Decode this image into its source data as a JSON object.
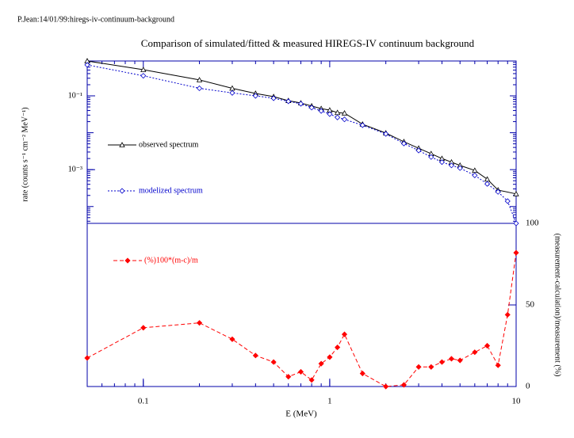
{
  "header": "P.Jean:14/01/99:hiregs-iv-continuum-background",
  "chart_data": {
    "type": "line",
    "title": "Comparison of simulated/fitted & measured HIREGS-IV continuum background",
    "xlabel": "E (MeV)",
    "ylabel": "rate (counts s⁻¹ cm⁻² MeV⁻¹)",
    "y2label": "(measurement-calculation)/measurement (%)",
    "xscale": "log",
    "yscale": "log",
    "xlim": [
      0.05,
      10
    ],
    "xticks": [
      0.1,
      1,
      10
    ],
    "ylim": [
      3.5e-05,
      0.88
    ],
    "yticks": [
      {
        "value": 0.1,
        "label": "10⁻¹"
      },
      {
        "value": 0.001,
        "label": "10⁻³"
      }
    ],
    "y2lim": [
      0,
      100
    ],
    "y2ticks": [
      0,
      50,
      100
    ],
    "series": [
      {
        "name": "observed spectrum",
        "color": "#000000",
        "dash": "solid",
        "marker": "triangle",
        "x": [
          0.05,
          0.1,
          0.2,
          0.3,
          0.4,
          0.5,
          0.6,
          0.7,
          0.8,
          0.9,
          1,
          1.1,
          1.2,
          1.5,
          2,
          2.5,
          3,
          3.5,
          4,
          4.5,
          5,
          6,
          7,
          8,
          10
        ],
        "values": [
          0.88,
          0.51,
          0.27,
          0.16,
          0.116,
          0.095,
          0.074,
          0.064,
          0.053,
          0.045,
          0.041,
          0.035,
          0.034,
          0.017,
          0.0098,
          0.0057,
          0.0038,
          0.0027,
          0.002,
          0.0016,
          0.0013,
          0.00095,
          0.00055,
          0.00028,
          0.00022
        ]
      },
      {
        "name": "modelized spectrum",
        "color": "#0000cc",
        "dash": "dotted",
        "marker": "diamond",
        "x": [
          0.05,
          0.1,
          0.2,
          0.3,
          0.4,
          0.5,
          0.6,
          0.7,
          0.8,
          0.9,
          1,
          1.1,
          1.2,
          1.5,
          2,
          2.5,
          3,
          3.5,
          4,
          4.5,
          5,
          6,
          7,
          8,
          9,
          10
        ],
        "values": [
          0.69,
          0.35,
          0.16,
          0.12,
          0.1,
          0.086,
          0.071,
          0.061,
          0.048,
          0.039,
          0.032,
          0.026,
          0.023,
          0.016,
          0.0093,
          0.0051,
          0.0033,
          0.0022,
          0.0016,
          0.0013,
          0.0011,
          0.0007,
          0.00041,
          0.00025,
          0.00014,
          3.5e-05
        ]
      },
      {
        "name": "(%)100*(m-c)/m",
        "color": "#ff0000",
        "dash": "dashed",
        "marker": "filled-diamond",
        "axis": "y2",
        "x": [
          0.05,
          0.1,
          0.2,
          0.3,
          0.4,
          0.5,
          0.6,
          0.7,
          0.8,
          0.9,
          1,
          1.1,
          1.2,
          1.5,
          2,
          2.5,
          3,
          3.5,
          4,
          4.5,
          5,
          6,
          7,
          8,
          9,
          10
        ],
        "values": [
          17.5,
          36,
          39,
          29,
          19,
          15,
          6,
          9,
          4,
          14,
          18,
          24,
          32,
          8,
          0,
          1,
          12,
          12,
          15,
          17,
          16,
          21,
          25,
          13,
          44,
          82
        ]
      }
    ]
  }
}
